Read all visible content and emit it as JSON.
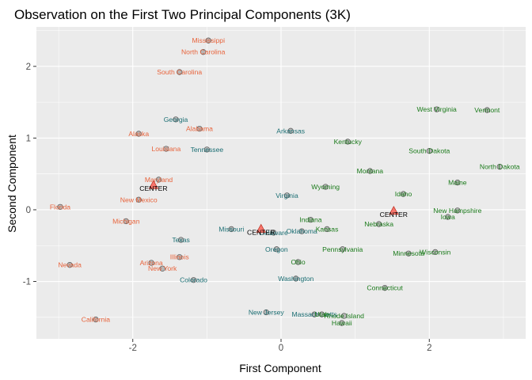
{
  "chart_data": {
    "type": "scatter",
    "title": "Observation on the First Two Principal Components (3K)",
    "xlabel": "First Component",
    "ylabel": "Second Component",
    "xlim": [
      -3.3,
      3.3
    ],
    "ylim": [
      -1.8,
      2.55
    ],
    "x_ticks": [
      -2,
      0,
      2
    ],
    "y_ticks": [
      -1,
      0,
      1,
      2
    ],
    "grid": true,
    "legend": "none",
    "colors": {
      "panel": "#ebebeb",
      "grid": "#ffffff",
      "point_fill": "#a6a6a6",
      "point_stroke": "#595959",
      "center_fill": "#f8766d",
      "center_stroke": "#c0392b"
    },
    "clusters": [
      {
        "color": "#e8633b",
        "center": {
          "label": "CENTER",
          "x": -1.72,
          "y": 0.34
        },
        "points": [
          {
            "label": "Mississippi",
            "x": -0.98,
            "y": 2.36
          },
          {
            "label": "North Carolina",
            "x": -1.05,
            "y": 2.2
          },
          {
            "label": "South Carolina",
            "x": -1.37,
            "y": 1.92
          },
          {
            "label": "Alabama",
            "x": -1.1,
            "y": 1.13
          },
          {
            "label": "Alaska",
            "x": -1.92,
            "y": 1.06
          },
          {
            "label": "Louisiana",
            "x": -1.55,
            "y": 0.85
          },
          {
            "label": "Maryland",
            "x": -1.65,
            "y": 0.42
          },
          {
            "label": "New Mexico",
            "x": -1.92,
            "y": 0.14
          },
          {
            "label": "Florida",
            "x": -2.98,
            "y": 0.04
          },
          {
            "label": "Michigan",
            "x": -2.09,
            "y": -0.16
          },
          {
            "label": "Illinois",
            "x": -1.37,
            "y": -0.66
          },
          {
            "label": "Arizona",
            "x": -1.75,
            "y": -0.74
          },
          {
            "label": "New York",
            "x": -1.6,
            "y": -0.82
          },
          {
            "label": "Nevada",
            "x": -2.85,
            "y": -0.77
          },
          {
            "label": "California",
            "x": -2.5,
            "y": -1.53
          }
        ]
      },
      {
        "color": "#1b6e73",
        "center": {
          "label": "CENTER",
          "x": -0.27,
          "y": -0.27
        },
        "points": [
          {
            "label": "Georgia",
            "x": -1.42,
            "y": 1.26
          },
          {
            "label": "Arkansas",
            "x": 0.13,
            "y": 1.1
          },
          {
            "label": "Tennessee",
            "x": -1.0,
            "y": 0.84
          },
          {
            "label": "Virginia",
            "x": 0.08,
            "y": 0.2
          },
          {
            "label": "Missouri",
            "x": -0.67,
            "y": -0.27
          },
          {
            "label": "Delaware",
            "x": -0.1,
            "y": -0.32
          },
          {
            "label": "Oklahoma",
            "x": 0.28,
            "y": -0.3
          },
          {
            "label": "Texas",
            "x": -1.35,
            "y": -0.42
          },
          {
            "label": "Oregon",
            "x": -0.06,
            "y": -0.55
          },
          {
            "label": "Colorado",
            "x": -1.18,
            "y": -0.98
          },
          {
            "label": "Washington",
            "x": 0.2,
            "y": -0.96
          },
          {
            "label": "New Jersey",
            "x": -0.2,
            "y": -1.43
          },
          {
            "label": "Massachusetts",
            "x": 0.45,
            "y": -1.46
          }
        ]
      },
      {
        "color": "#1a7a1a",
        "center": {
          "label": "CENTER",
          "x": 1.52,
          "y": -0.02
        },
        "points": [
          {
            "label": "West Virginia",
            "x": 2.1,
            "y": 1.4
          },
          {
            "label": "Vermont",
            "x": 2.78,
            "y": 1.39
          },
          {
            "label": "Kentucky",
            "x": 0.9,
            "y": 0.95
          },
          {
            "label": "South Dakota",
            "x": 2.0,
            "y": 0.82
          },
          {
            "label": "North Dakota",
            "x": 2.95,
            "y": 0.6
          },
          {
            "label": "Montana",
            "x": 1.2,
            "y": 0.54
          },
          {
            "label": "Maine",
            "x": 2.38,
            "y": 0.38
          },
          {
            "label": "Wyoming",
            "x": 0.6,
            "y": 0.32
          },
          {
            "label": "Idaho",
            "x": 1.65,
            "y": 0.22
          },
          {
            "label": "New Hampshire",
            "x": 2.38,
            "y": -0.01
          },
          {
            "label": "Iowa",
            "x": 2.25,
            "y": -0.1
          },
          {
            "label": "Indiana",
            "x": 0.4,
            "y": -0.14
          },
          {
            "label": "Nebraska",
            "x": 1.32,
            "y": -0.2
          },
          {
            "label": "Kansas",
            "x": 0.62,
            "y": -0.27
          },
          {
            "label": "Pennsylvania",
            "x": 0.83,
            "y": -0.55
          },
          {
            "label": "Minnesota",
            "x": 1.72,
            "y": -0.61
          },
          {
            "label": "Wisconsin",
            "x": 2.08,
            "y": -0.59
          },
          {
            "label": "Ohio",
            "x": 0.23,
            "y": -0.73
          },
          {
            "label": "Connecticut",
            "x": 1.4,
            "y": -1.09
          },
          {
            "label": "Utah",
            "x": 0.55,
            "y": -1.46
          },
          {
            "label": "Rhode Island",
            "x": 0.85,
            "y": -1.48
          },
          {
            "label": "Hawaii",
            "x": 0.82,
            "y": -1.58
          }
        ]
      }
    ]
  }
}
